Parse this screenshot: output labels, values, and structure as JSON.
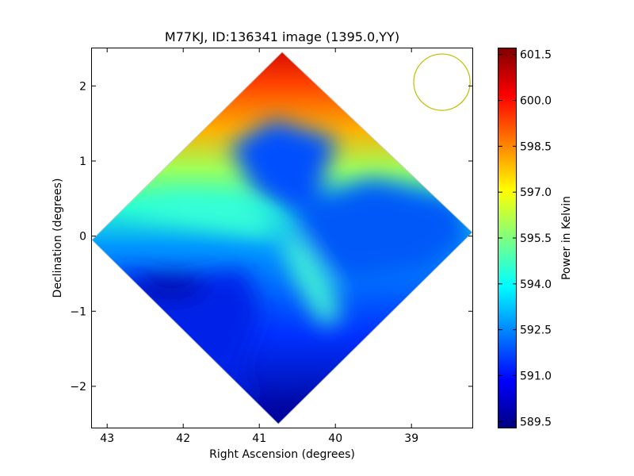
{
  "chart_data": {
    "type": "heatmap",
    "title": "M77KJ, ID:136341 image (1395.0,YY)",
    "xlabel": "Right Ascension (degrees)",
    "ylabel": "Declination (degrees)",
    "xlim": [
      43.2,
      38.2
    ],
    "ylim": [
      -2.55,
      2.5
    ],
    "xticks": [
      43,
      42,
      41,
      40,
      39
    ],
    "xtick_labels": [
      "43",
      "42",
      "41",
      "40",
      "39"
    ],
    "yticks": [
      2,
      1,
      0,
      -1,
      -2
    ],
    "ytick_labels": [
      "2",
      "1",
      "0",
      "−1",
      "−2"
    ],
    "grid": false,
    "map_extent": {
      "top": [
        40.7,
        2.45
      ],
      "right": [
        38.2,
        0.05
      ],
      "bottom": [
        40.75,
        -2.5
      ],
      "left": [
        43.2,
        -0.05
      ]
    },
    "color_scale": {
      "label": "Power in Kelvin",
      "min": 589.3,
      "max": 601.7,
      "ticks": [
        589.5,
        591.0,
        592.5,
        594.0,
        595.5,
        597.0,
        598.5,
        600.0,
        601.5
      ],
      "tick_labels": [
        "589.5",
        "591.0",
        "592.5",
        "594.0",
        "595.5",
        "597.0",
        "598.5",
        "600.0",
        "601.5"
      ],
      "colormap": "jet",
      "stops": [
        "#00007f",
        "#0000ff",
        "#007fff",
        "#00ffff",
        "#7fff7f",
        "#ffff00",
        "#ff7f00",
        "#ff0000",
        "#7f0000"
      ]
    },
    "beam_circle": {
      "center": [
        38.6,
        2.05
      ],
      "radius_deg": 0.37,
      "color": "#bfbf00"
    },
    "features": [
      {
        "ra": 40.7,
        "dec": 2.3,
        "value": 601.0
      },
      {
        "ra": 41.6,
        "dec": 1.6,
        "value": 598.5
      },
      {
        "ra": 42.0,
        "dec": 1.0,
        "value": 596.8
      },
      {
        "ra": 40.6,
        "dec": 0.0,
        "value": 595.0
      },
      {
        "ra": 40.3,
        "dec": -0.5,
        "value": 595.5
      },
      {
        "ra": 41.0,
        "dec": 1.0,
        "value": 590.5
      },
      {
        "ra": 39.5,
        "dec": -0.1,
        "value": 590.7
      },
      {
        "ra": 42.2,
        "dec": -0.7,
        "value": 589.6
      },
      {
        "ra": 40.75,
        "dec": -2.4,
        "value": 589.4
      }
    ]
  }
}
